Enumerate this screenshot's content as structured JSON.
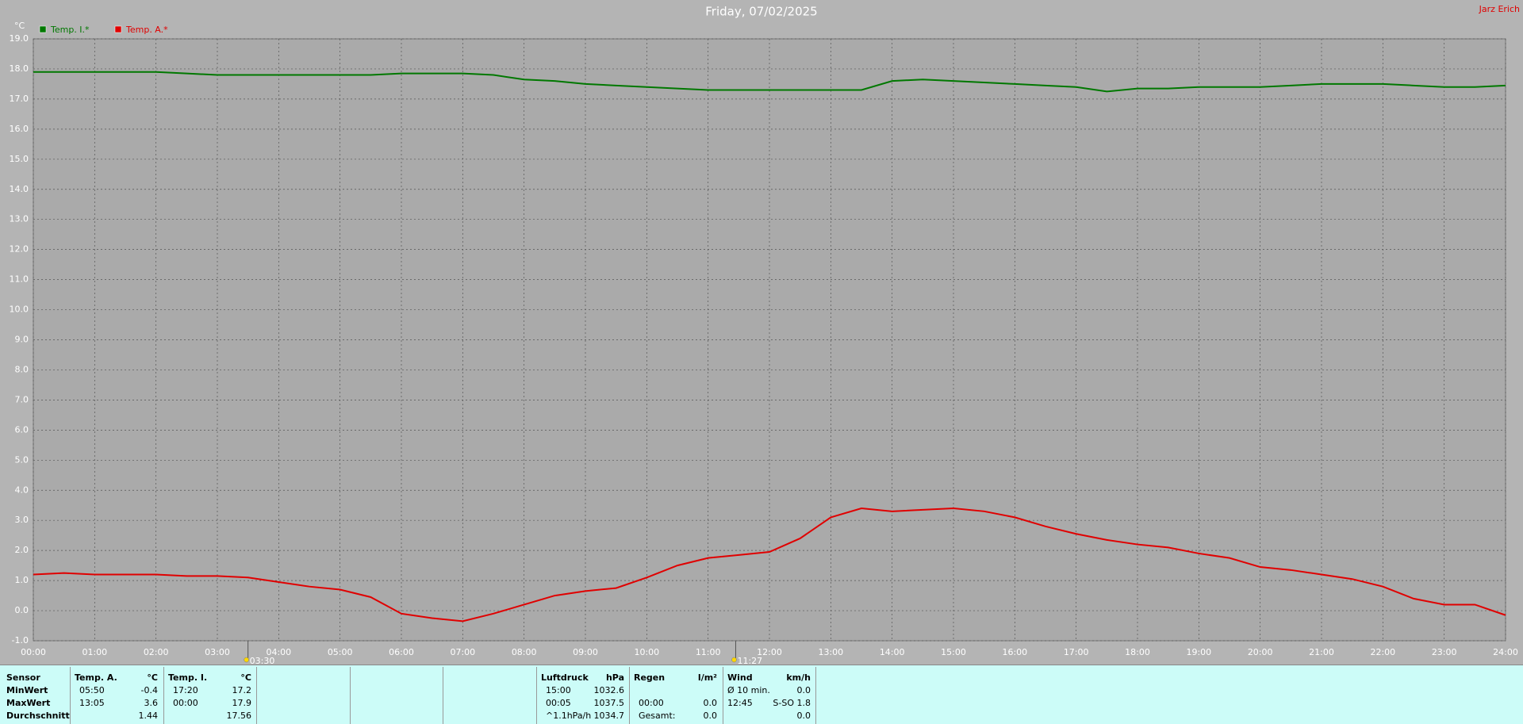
{
  "chart_data": {
    "type": "line",
    "title": "Friday, 07/02/2025",
    "y_label": "°C",
    "corner_text": "Jarz Erich",
    "legend": "top-left",
    "grid": true,
    "xlim": [
      0,
      24
    ],
    "xticks": [
      {
        "value": 0,
        "label": "00:00"
      },
      {
        "value": 1,
        "label": "01:00"
      },
      {
        "value": 2,
        "label": "02:00"
      },
      {
        "value": 3,
        "label": "03:00"
      },
      {
        "value": 4,
        "label": "04:00"
      },
      {
        "value": 5,
        "label": "05:00"
      },
      {
        "value": 6,
        "label": "06:00"
      },
      {
        "value": 7,
        "label": "07:00"
      },
      {
        "value": 8,
        "label": "08:00"
      },
      {
        "value": 9,
        "label": "09:00"
      },
      {
        "value": 10,
        "label": "10:00"
      },
      {
        "value": 11,
        "label": "11:00"
      },
      {
        "value": 12,
        "label": "12:00"
      },
      {
        "value": 13,
        "label": "13:00"
      },
      {
        "value": 14,
        "label": "14:00"
      },
      {
        "value": 15,
        "label": "15:00"
      },
      {
        "value": 16,
        "label": "16:00"
      },
      {
        "value": 17,
        "label": "17:00"
      },
      {
        "value": 18,
        "label": "18:00"
      },
      {
        "value": 19,
        "label": "19:00"
      },
      {
        "value": 20,
        "label": "20:00"
      },
      {
        "value": 21,
        "label": "21:00"
      },
      {
        "value": 22,
        "label": "22:00"
      },
      {
        "value": 23,
        "label": "23:00"
      },
      {
        "value": 24,
        "label": "24:00"
      }
    ],
    "ylim": [
      -1,
      19
    ],
    "yticks": [
      {
        "value": 19,
        "label": "19.0"
      },
      {
        "value": 18,
        "label": "18.0"
      },
      {
        "value": 17,
        "label": "17.0"
      },
      {
        "value": 16,
        "label": "16.0"
      },
      {
        "value": 15,
        "label": "15.0"
      },
      {
        "value": 14,
        "label": "14.0"
      },
      {
        "value": 13,
        "label": "13.0"
      },
      {
        "value": 12,
        "label": "12.0"
      },
      {
        "value": 11,
        "label": "11.0"
      },
      {
        "value": 10,
        "label": "10.0"
      },
      {
        "value": 9,
        "label": "9.0"
      },
      {
        "value": 8,
        "label": "8.0"
      },
      {
        "value": 7,
        "label": "7.0"
      },
      {
        "value": 6,
        "label": "6.0"
      },
      {
        "value": 5,
        "label": "5.0"
      },
      {
        "value": 4,
        "label": "4.0"
      },
      {
        "value": 3,
        "label": "3.0"
      },
      {
        "value": 2,
        "label": "2.0"
      },
      {
        "value": 1,
        "label": "1.0"
      },
      {
        "value": 0,
        "label": "0.0"
      },
      {
        "value": -1,
        "label": "-1.0"
      }
    ],
    "x": [
      0,
      0.5,
      1,
      1.5,
      2,
      2.5,
      3,
      3.5,
      4,
      4.5,
      5,
      5.5,
      6,
      6.5,
      7,
      7.5,
      8,
      8.5,
      9,
      9.5,
      10,
      10.5,
      11,
      11.5,
      12,
      12.5,
      13,
      13.5,
      14,
      14.5,
      15,
      15.5,
      16,
      16.5,
      17,
      17.5,
      18,
      18.5,
      19,
      19.5,
      20,
      20.5,
      21,
      21.5,
      22,
      22.5,
      23,
      23.5,
      24
    ],
    "series": [
      {
        "name": "Temp. I.*",
        "color": "#007800",
        "values": [
          17.9,
          17.9,
          17.9,
          17.9,
          17.9,
          17.85,
          17.8,
          17.8,
          17.8,
          17.8,
          17.8,
          17.8,
          17.85,
          17.85,
          17.85,
          17.8,
          17.65,
          17.6,
          17.5,
          17.45,
          17.4,
          17.35,
          17.3,
          17.3,
          17.3,
          17.3,
          17.3,
          17.3,
          17.6,
          17.65,
          17.6,
          17.55,
          17.5,
          17.45,
          17.4,
          17.25,
          17.35,
          17.35,
          17.4,
          17.4,
          17.4,
          17.45,
          17.5,
          17.5,
          17.5,
          17.45,
          17.4,
          17.4,
          17.45
        ]
      },
      {
        "name": "Temp. A.*",
        "color": "#e00000",
        "values": [
          1.2,
          1.25,
          1.2,
          1.2,
          1.2,
          1.15,
          1.15,
          1.1,
          0.95,
          0.8,
          0.7,
          0.45,
          -0.1,
          -0.25,
          -0.35,
          -0.1,
          0.2,
          0.5,
          0.65,
          0.75,
          1.1,
          1.5,
          1.75,
          1.85,
          1.95,
          2.4,
          3.1,
          3.4,
          3.3,
          3.35,
          3.4,
          3.3,
          3.1,
          2.8,
          2.55,
          2.35,
          2.2,
          2.1,
          1.9,
          1.75,
          1.45,
          1.35,
          1.2,
          1.05,
          0.8,
          0.4,
          0.2,
          0.2,
          -0.15
        ]
      }
    ],
    "annotations": [
      {
        "label": "03:30",
        "x": 3.5
      },
      {
        "label": "11:27",
        "x": 11.45
      }
    ]
  },
  "summary": {
    "row_labels": [
      "Sensor",
      "MinWert",
      "MaxWert",
      "Durchschnitt"
    ],
    "groups": [
      {
        "headers": [
          "Temp. A.",
          "°C"
        ],
        "rows": [
          [
            "05:50",
            "-0.4"
          ],
          [
            "13:05",
            "3.6"
          ],
          [
            null,
            "1.44"
          ]
        ]
      },
      {
        "headers": [
          "Temp. I.",
          "°C"
        ],
        "rows": [
          [
            "17:20",
            "17.2"
          ],
          [
            "00:00",
            "17.9"
          ],
          [
            null,
            "17.56"
          ]
        ]
      },
      {
        "headers": [
          "Luftdruck",
          "hPa"
        ],
        "rows": [
          [
            "15:00",
            "1032.6"
          ],
          [
            "00:05",
            "1037.5"
          ],
          [
            "^1.1hPa/h",
            "1034.7"
          ]
        ]
      },
      {
        "headers": [
          "Regen",
          "l/m²"
        ],
        "rows": [
          [
            null,
            null
          ],
          [
            "00:00",
            "0.0"
          ],
          [
            "Gesamt:",
            "0.0"
          ]
        ]
      },
      {
        "headers": [
          "Wind",
          "km/h"
        ],
        "rows": [
          [
            "Ø 10 min.",
            "0.0"
          ],
          [
            "12:45",
            "S-SO 1.8"
          ],
          [
            null,
            "0.0"
          ]
        ]
      }
    ]
  }
}
